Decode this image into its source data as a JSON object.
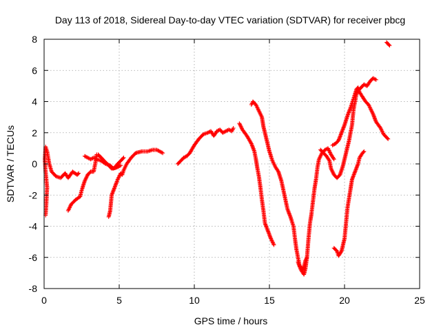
{
  "chart_data": {
    "type": "scatter",
    "title": "Day 113 of 2018, Sidereal Day-to-day VTEC variation (SDTVAR) for receiver pbcg",
    "xlabel": "GPS time / hours",
    "ylabel": "SDTVAR / TECUs",
    "xlim": [
      0,
      25
    ],
    "ylim": [
      -8,
      8
    ],
    "xticks": [
      0,
      5,
      10,
      15,
      20,
      25
    ],
    "yticks": [
      -8,
      -6,
      -4,
      -2,
      0,
      2,
      4,
      6,
      8
    ],
    "grid": true,
    "marker": "+",
    "series_color": "#ff0000",
    "series": [
      {
        "points": [
          [
            0.1,
            -3.3
          ],
          [
            0.15,
            -2.5
          ],
          [
            0.2,
            -1.5
          ],
          [
            0.1,
            -0.5
          ],
          [
            0.05,
            0.3
          ],
          [
            0.1,
            1.1
          ],
          [
            0.2,
            0.8
          ]
        ]
      },
      {
        "points": [
          [
            0.2,
            0.8
          ],
          [
            0.35,
            0.0
          ],
          [
            0.5,
            -0.5
          ],
          [
            0.8,
            -0.8
          ],
          [
            1.1,
            -0.9
          ],
          [
            1.4,
            -0.6
          ],
          [
            1.6,
            -0.9
          ],
          [
            1.9,
            -0.5
          ],
          [
            2.2,
            -0.7
          ],
          [
            2.3,
            -0.6
          ]
        ]
      },
      {
        "points": [
          [
            1.6,
            -3.0
          ],
          [
            1.8,
            -2.6
          ],
          [
            2.1,
            -2.3
          ],
          [
            2.4,
            -2.1
          ],
          [
            2.5,
            -1.7
          ],
          [
            2.7,
            -1.1
          ],
          [
            2.9,
            -0.7
          ],
          [
            3.1,
            -0.5
          ],
          [
            3.3,
            -0.5
          ],
          [
            3.4,
            0.0
          ],
          [
            3.5,
            0.6
          ],
          [
            3.6,
            0.6
          ],
          [
            3.9,
            0.3
          ],
          [
            4.2,
            0.0
          ],
          [
            4.5,
            -0.3
          ],
          [
            4.9,
            -0.2
          ],
          [
            5.1,
            -0.1
          ]
        ]
      },
      {
        "points": [
          [
            2.7,
            0.5
          ],
          [
            2.9,
            0.4
          ],
          [
            3.1,
            0.3
          ],
          [
            3.3,
            0.4
          ],
          [
            3.5,
            0.3
          ],
          [
            3.8,
            0.2
          ],
          [
            4.1,
            0.0
          ],
          [
            4.4,
            -0.1
          ],
          [
            4.6,
            -0.3
          ],
          [
            4.9,
            -0.2
          ],
          [
            5.0,
            -0.1
          ]
        ]
      },
      {
        "points": [
          [
            4.3,
            -3.4
          ],
          [
            4.4,
            -3.0
          ],
          [
            4.5,
            -2.0
          ],
          [
            4.7,
            -1.5
          ],
          [
            4.9,
            -1.0
          ],
          [
            5.1,
            -0.6
          ],
          [
            5.2,
            -0.7
          ],
          [
            5.3,
            -0.4
          ],
          [
            5.5,
            0.0
          ],
          [
            5.8,
            0.4
          ],
          [
            6.1,
            0.7
          ],
          [
            6.5,
            0.8
          ],
          [
            6.9,
            0.8
          ],
          [
            7.2,
            0.9
          ],
          [
            7.5,
            0.9
          ],
          [
            7.9,
            0.7
          ]
        ]
      },
      {
        "points": [
          [
            4.8,
            -0.1
          ],
          [
            5.1,
            0.2
          ],
          [
            5.3,
            0.4
          ]
        ]
      },
      {
        "points": [
          [
            8.9,
            0.0
          ],
          [
            9.1,
            0.2
          ],
          [
            9.3,
            0.4
          ],
          [
            9.5,
            0.5
          ],
          [
            9.7,
            0.7
          ],
          [
            10.0,
            1.2
          ],
          [
            10.3,
            1.6
          ],
          [
            10.6,
            1.9
          ],
          [
            10.9,
            2.0
          ],
          [
            11.1,
            2.1
          ],
          [
            11.3,
            1.8
          ],
          [
            11.5,
            2.1
          ],
          [
            11.7,
            2.2
          ],
          [
            11.9,
            2.0
          ],
          [
            12.1,
            2.1
          ],
          [
            12.3,
            2.2
          ],
          [
            12.5,
            2.1
          ],
          [
            12.6,
            2.3
          ]
        ]
      },
      {
        "points": [
          [
            13.0,
            2.6
          ],
          [
            13.2,
            2.2
          ],
          [
            13.5,
            1.8
          ],
          [
            13.8,
            1.3
          ],
          [
            14.0,
            0.8
          ],
          [
            14.1,
            0.3
          ],
          [
            14.2,
            -0.3
          ],
          [
            14.3,
            -0.8
          ],
          [
            14.4,
            -1.5
          ],
          [
            14.5,
            -2.3
          ],
          [
            14.6,
            -3.0
          ],
          [
            14.7,
            -3.8
          ],
          [
            14.9,
            -4.3
          ],
          [
            15.1,
            -4.8
          ],
          [
            15.3,
            -5.2
          ]
        ]
      },
      {
        "points": [
          [
            13.8,
            3.8
          ],
          [
            13.9,
            4.0
          ],
          [
            14.1,
            3.8
          ],
          [
            14.3,
            3.4
          ],
          [
            14.5,
            3.0
          ],
          [
            14.6,
            2.4
          ],
          [
            14.8,
            1.6
          ],
          [
            15.0,
            0.8
          ],
          [
            15.2,
            0.2
          ],
          [
            15.4,
            -0.2
          ],
          [
            15.6,
            -0.5
          ],
          [
            15.8,
            -1.1
          ],
          [
            16.0,
            -2.0
          ],
          [
            16.2,
            -2.9
          ],
          [
            16.4,
            -3.4
          ],
          [
            16.6,
            -4.0
          ],
          [
            16.7,
            -4.8
          ],
          [
            16.8,
            -5.5
          ],
          [
            16.9,
            -6.0
          ],
          [
            17.0,
            -6.5
          ],
          [
            17.2,
            -6.8
          ],
          [
            17.3,
            -6.6
          ],
          [
            17.4,
            -6.2
          ],
          [
            17.5,
            -6.0
          ]
        ]
      },
      {
        "points": [
          [
            16.9,
            -6.3
          ],
          [
            17.1,
            -6.8
          ],
          [
            17.3,
            -7.1
          ],
          [
            17.4,
            -6.7
          ],
          [
            17.5,
            -6.0
          ],
          [
            17.6,
            -4.8
          ],
          [
            17.7,
            -3.8
          ],
          [
            17.8,
            -3.2
          ],
          [
            17.9,
            -2.4
          ],
          [
            18.0,
            -1.6
          ],
          [
            18.1,
            -1.0
          ],
          [
            18.2,
            -0.2
          ],
          [
            18.3,
            0.3
          ],
          [
            18.5,
            0.7
          ],
          [
            18.7,
            0.9
          ],
          [
            18.9,
            1.0
          ],
          [
            19.1,
            0.6
          ],
          [
            19.3,
            0.3
          ]
        ]
      },
      {
        "points": [
          [
            18.4,
            0.9
          ],
          [
            18.6,
            0.7
          ],
          [
            18.8,
            0.5
          ],
          [
            19.0,
            0.2
          ],
          [
            19.1,
            -0.3
          ],
          [
            19.3,
            -0.7
          ],
          [
            19.5,
            -0.9
          ],
          [
            19.7,
            -0.7
          ],
          [
            19.9,
            -0.1
          ],
          [
            20.1,
            0.7
          ],
          [
            20.3,
            1.5
          ],
          [
            20.5,
            2.5
          ],
          [
            20.6,
            3.5
          ],
          [
            20.8,
            4.5
          ],
          [
            20.9,
            4.7
          ],
          [
            21.1,
            4.9
          ],
          [
            21.3,
            5.1
          ],
          [
            21.5,
            5.0
          ],
          [
            21.7,
            5.3
          ],
          [
            21.9,
            5.5
          ],
          [
            22.1,
            5.4
          ]
        ]
      },
      {
        "points": [
          [
            19.2,
            1.2
          ],
          [
            19.4,
            1.3
          ],
          [
            19.6,
            1.5
          ],
          [
            19.8,
            2.0
          ],
          [
            20.0,
            2.5
          ],
          [
            20.2,
            3.1
          ],
          [
            20.4,
            3.6
          ],
          [
            20.6,
            4.2
          ],
          [
            20.8,
            4.8
          ],
          [
            20.9,
            4.9
          ],
          [
            21.0,
            4.6
          ],
          [
            21.2,
            4.3
          ],
          [
            21.4,
            4.0
          ],
          [
            21.6,
            3.8
          ],
          [
            21.9,
            3.2
          ],
          [
            22.1,
            2.7
          ],
          [
            22.4,
            2.3
          ],
          [
            22.6,
            1.9
          ],
          [
            22.8,
            1.7
          ],
          [
            22.9,
            1.6
          ]
        ]
      },
      {
        "points": [
          [
            19.3,
            -5.4
          ],
          [
            19.5,
            -5.6
          ],
          [
            19.6,
            -5.9
          ],
          [
            19.8,
            -5.6
          ],
          [
            20.0,
            -4.8
          ],
          [
            20.1,
            -3.8
          ],
          [
            20.2,
            -2.8
          ],
          [
            20.4,
            -1.6
          ],
          [
            20.5,
            -1.0
          ],
          [
            20.7,
            -0.5
          ],
          [
            20.9,
            0.0
          ],
          [
            21.0,
            0.4
          ],
          [
            21.2,
            0.7
          ],
          [
            21.3,
            0.8
          ]
        ]
      },
      {
        "points": [
          [
            22.8,
            7.8
          ],
          [
            22.9,
            7.7
          ],
          [
            23.0,
            7.6
          ]
        ]
      }
    ]
  }
}
